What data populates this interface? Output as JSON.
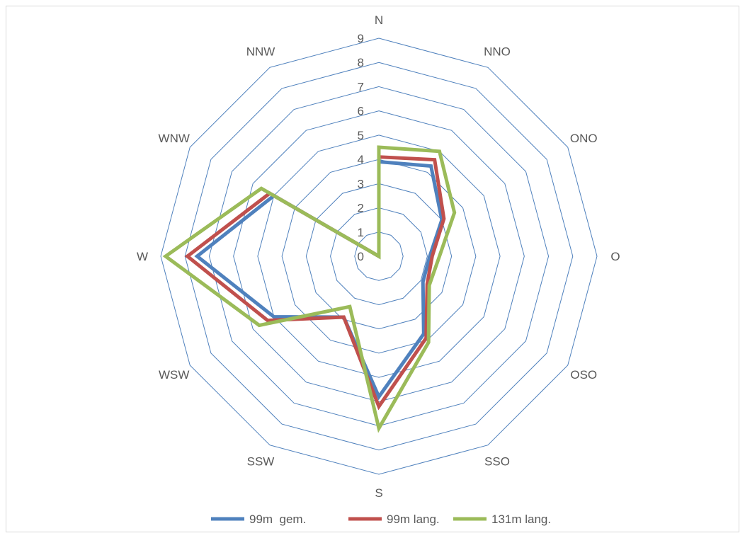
{
  "chart_data": {
    "type": "radar",
    "title": "",
    "categories": [
      "N",
      "NNO",
      "ONO",
      "O",
      "OSO",
      "SSO",
      "S",
      "SSW",
      "WSW",
      "W",
      "WNW",
      "NNW"
    ],
    "rlim": [
      0,
      9
    ],
    "ticks": [
      "0",
      "1",
      "2",
      "3",
      "4",
      "5",
      "6",
      "7",
      "8",
      "9"
    ],
    "grid": true,
    "legend_position": "bottom",
    "series": [
      {
        "name": "99m  gem.",
        "color": "#4f81bd",
        "values": [
          3.9,
          4.3,
          3.0,
          2.1,
          2.1,
          3.7,
          5.8,
          2.9,
          5.0,
          7.5,
          5.0,
          0
        ]
      },
      {
        "name": "99m lang.",
        "color": "#c0504d",
        "values": [
          4.1,
          4.6,
          3.1,
          2.2,
          2.3,
          3.9,
          6.2,
          2.9,
          5.3,
          7.9,
          5.2,
          0
        ]
      },
      {
        "name": "131m lang.",
        "color": "#9bbb59",
        "values": [
          4.5,
          5.0,
          3.6,
          2.5,
          2.4,
          4.1,
          7.1,
          2.4,
          5.7,
          8.8,
          5.6,
          0
        ]
      }
    ]
  }
}
